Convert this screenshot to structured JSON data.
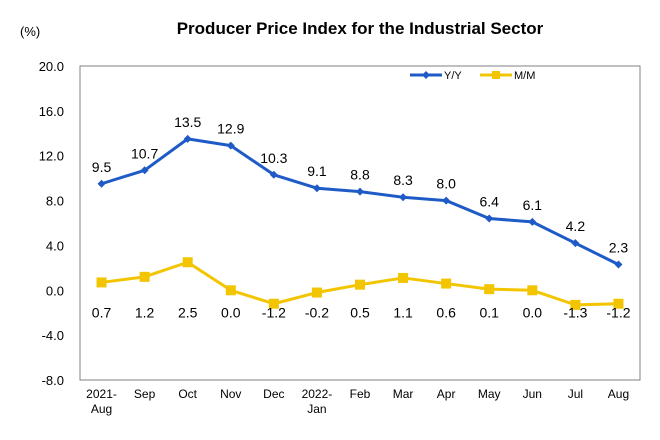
{
  "chart_data": {
    "type": "line",
    "title": "Producer Price Index for the Industrial Sector",
    "ylabel": "(%)",
    "xlabel": "",
    "ylim": [
      -8.0,
      20.0
    ],
    "yticks": [
      "20.0",
      "16.0",
      "12.0",
      "8.0",
      "4.0",
      "0.0",
      "-4.0",
      "-8.0"
    ],
    "ytick_values": [
      20,
      16,
      12,
      8,
      4,
      0,
      -4,
      -8
    ],
    "categories": [
      [
        "2021-",
        "Aug"
      ],
      [
        "Sep"
      ],
      [
        "Oct"
      ],
      [
        "Nov"
      ],
      [
        "Dec"
      ],
      [
        "2022-",
        "Jan"
      ],
      [
        "Feb"
      ],
      [
        "Mar"
      ],
      [
        "Apr"
      ],
      [
        "May"
      ],
      [
        "Jun"
      ],
      [
        "Jul"
      ],
      [
        "Aug"
      ]
    ],
    "grid": false,
    "legend_position": "top-right",
    "series": [
      {
        "name": "Y/Y",
        "color": "#1F5BC6",
        "marker": "diamond",
        "values": [
          9.5,
          10.7,
          13.5,
          12.9,
          10.3,
          9.1,
          8.8,
          8.3,
          8.0,
          6.4,
          6.1,
          4.2,
          2.3
        ],
        "labels": [
          "9.5",
          "10.7",
          "13.5",
          "12.9",
          "10.3",
          "9.1",
          "8.8",
          "8.3",
          "8.0",
          "6.4",
          "6.1",
          "4.2",
          "2.3"
        ]
      },
      {
        "name": "M/M",
        "color": "#F2C500",
        "marker": "square",
        "values": [
          0.7,
          1.2,
          2.5,
          0.0,
          -1.2,
          -0.2,
          0.5,
          1.1,
          0.6,
          0.1,
          0.0,
          -1.3,
          -1.2
        ],
        "labels": [
          "0.7",
          "1.2",
          "2.5",
          "0.0",
          "-1.2",
          "-0.2",
          "0.5",
          "1.1",
          "0.6",
          "0.1",
          "0.0",
          "-1.3",
          "-1.2"
        ]
      }
    ]
  }
}
